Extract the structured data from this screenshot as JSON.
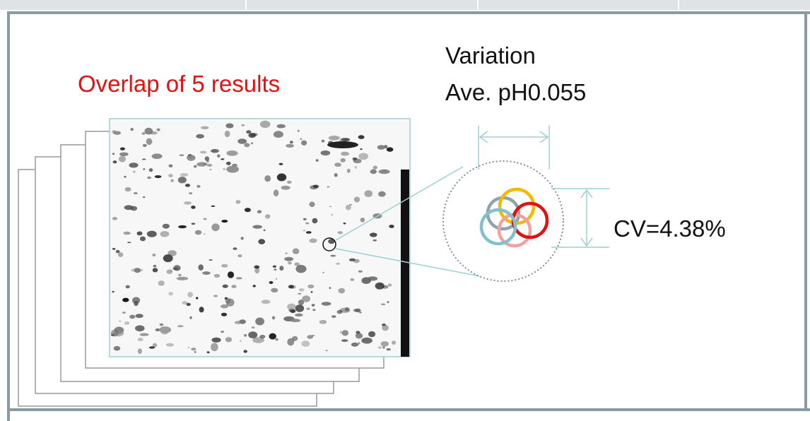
{
  "labels": {
    "overlap": "Overlap of 5 results",
    "variation": "Variation",
    "ave_ph": "Ave. pH0.055",
    "cv": "CV=4.38%"
  }
}
